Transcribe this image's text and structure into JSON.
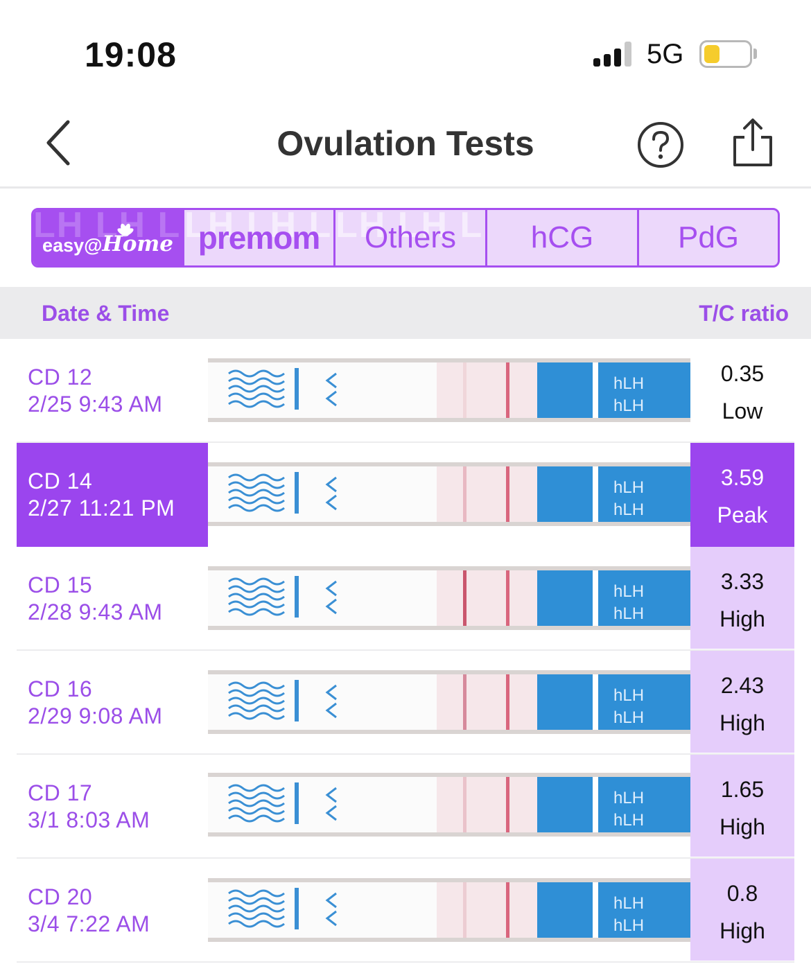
{
  "status_bar": {
    "time": "19:08",
    "network": "5G",
    "signal_icon": "cellular-signal-icon",
    "battery_icon": "battery-low-icon"
  },
  "nav": {
    "title": "Ovulation Tests",
    "back_icon": "chevron-left-icon",
    "help_icon": "question-circle-icon",
    "share_icon": "share-icon"
  },
  "brand_tabs": {
    "easyhome": {
      "prefix": "easy@",
      "suffix": "Home"
    },
    "premom": {
      "label": "premom"
    },
    "others": {
      "label": "Others"
    },
    "hcg": {
      "label": "hCG"
    },
    "pdg": {
      "label": "PdG"
    },
    "watermark": "LH LH LH LH"
  },
  "table": {
    "date_header": "Date & Time",
    "ratio_header": "T/C ratio",
    "rows": [
      {
        "cd": "CD 12",
        "datetime": "2/25 9:43 AM",
        "ratio": "0.35",
        "level": "Low",
        "state": "low",
        "test_line": "#f0d6da",
        "strip_label": "hLH"
      },
      {
        "cd": "CD 14",
        "datetime": "2/27 11:21 PM",
        "ratio": "3.59",
        "level": "Peak",
        "state": "peak",
        "test_line": "#e8b8c2",
        "strip_label": "hLH"
      },
      {
        "cd": "CD 15",
        "datetime": "2/28 9:43 AM",
        "ratio": "3.33",
        "level": "High",
        "state": "high",
        "test_line": "#c9566d",
        "strip_label": "hLH"
      },
      {
        "cd": "CD 16",
        "datetime": "2/29 9:08 AM",
        "ratio": "2.43",
        "level": "High",
        "state": "high",
        "test_line": "#d68a9c",
        "strip_label": "hLH"
      },
      {
        "cd": "CD 17",
        "datetime": "3/1 8:03 AM",
        "ratio": "1.65",
        "level": "High",
        "state": "high",
        "test_line": "#eac2ca",
        "strip_label": "hLH"
      },
      {
        "cd": "CD 20",
        "datetime": "3/4 7:22 AM",
        "ratio": "0.8",
        "level": "High",
        "state": "high",
        "test_line": "#ecccd2",
        "strip_label": "hLH"
      }
    ]
  },
  "colors": {
    "accent": "#9b45ee",
    "accent_light": "#e5cdfb",
    "strip_blue": "#2f8fd6",
    "control_line": "#d9667e"
  }
}
